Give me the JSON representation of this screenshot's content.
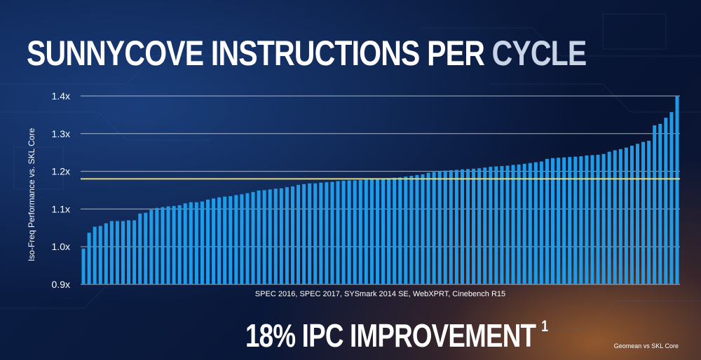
{
  "title_white": "SUNNYCOVE INSTRUCTIONS PER",
  "title_grey": "CYCLE",
  "headline": "18% IPC IMPROVEMENT",
  "headline_note": "1",
  "footnote": "Geomean vs SKL Core",
  "colors": {
    "bar": "#1f9be8",
    "grid": "#d8e2f0",
    "reference_line": "#e6d77a",
    "text": "#ffffff"
  },
  "chart_data": {
    "type": "bar",
    "title": "SUNNYCOVE INSTRUCTIONS PER CYCLE",
    "xlabel": "SPEC 2016, SPEC 2017, SYSmark 2014 SE, WebXPRT, Cinebench R15",
    "ylabel": "Iso-Freq Performance vs. SKL Core",
    "ylim": [
      0.9,
      1.4
    ],
    "yticks": [
      "0.9x",
      "1.0x",
      "1.1x",
      "1.2x",
      "1.3x",
      "1.4x"
    ],
    "ytick_values": [
      0.9,
      1.0,
      1.1,
      1.2,
      1.3,
      1.4
    ],
    "grid": true,
    "reference_line": {
      "value": 1.18
    },
    "values": [
      0.995,
      1.037,
      1.053,
      1.055,
      1.062,
      1.068,
      1.068,
      1.068,
      1.07,
      1.07,
      1.088,
      1.09,
      1.098,
      1.103,
      1.105,
      1.107,
      1.108,
      1.11,
      1.115,
      1.118,
      1.118,
      1.12,
      1.125,
      1.128,
      1.131,
      1.133,
      1.134,
      1.137,
      1.139,
      1.142,
      1.145,
      1.149,
      1.15,
      1.152,
      1.154,
      1.155,
      1.158,
      1.16,
      1.164,
      1.166,
      1.168,
      1.168,
      1.17,
      1.171,
      1.172,
      1.174,
      1.175,
      1.176,
      1.176,
      1.177,
      1.178,
      1.179,
      1.18,
      1.181,
      1.182,
      1.183,
      1.184,
      1.186,
      1.188,
      1.19,
      1.192,
      1.196,
      1.198,
      1.2,
      1.202,
      1.203,
      1.204,
      1.205,
      1.206,
      1.207,
      1.208,
      1.21,
      1.212,
      1.213,
      1.214,
      1.215,
      1.217,
      1.218,
      1.22,
      1.222,
      1.224,
      1.226,
      1.233,
      1.235,
      1.236,
      1.237,
      1.238,
      1.239,
      1.24,
      1.242,
      1.243,
      1.244,
      1.246,
      1.252,
      1.256,
      1.259,
      1.263,
      1.268,
      1.273,
      1.278,
      1.281,
      1.322,
      1.326,
      1.342,
      1.357,
      1.4
    ]
  }
}
